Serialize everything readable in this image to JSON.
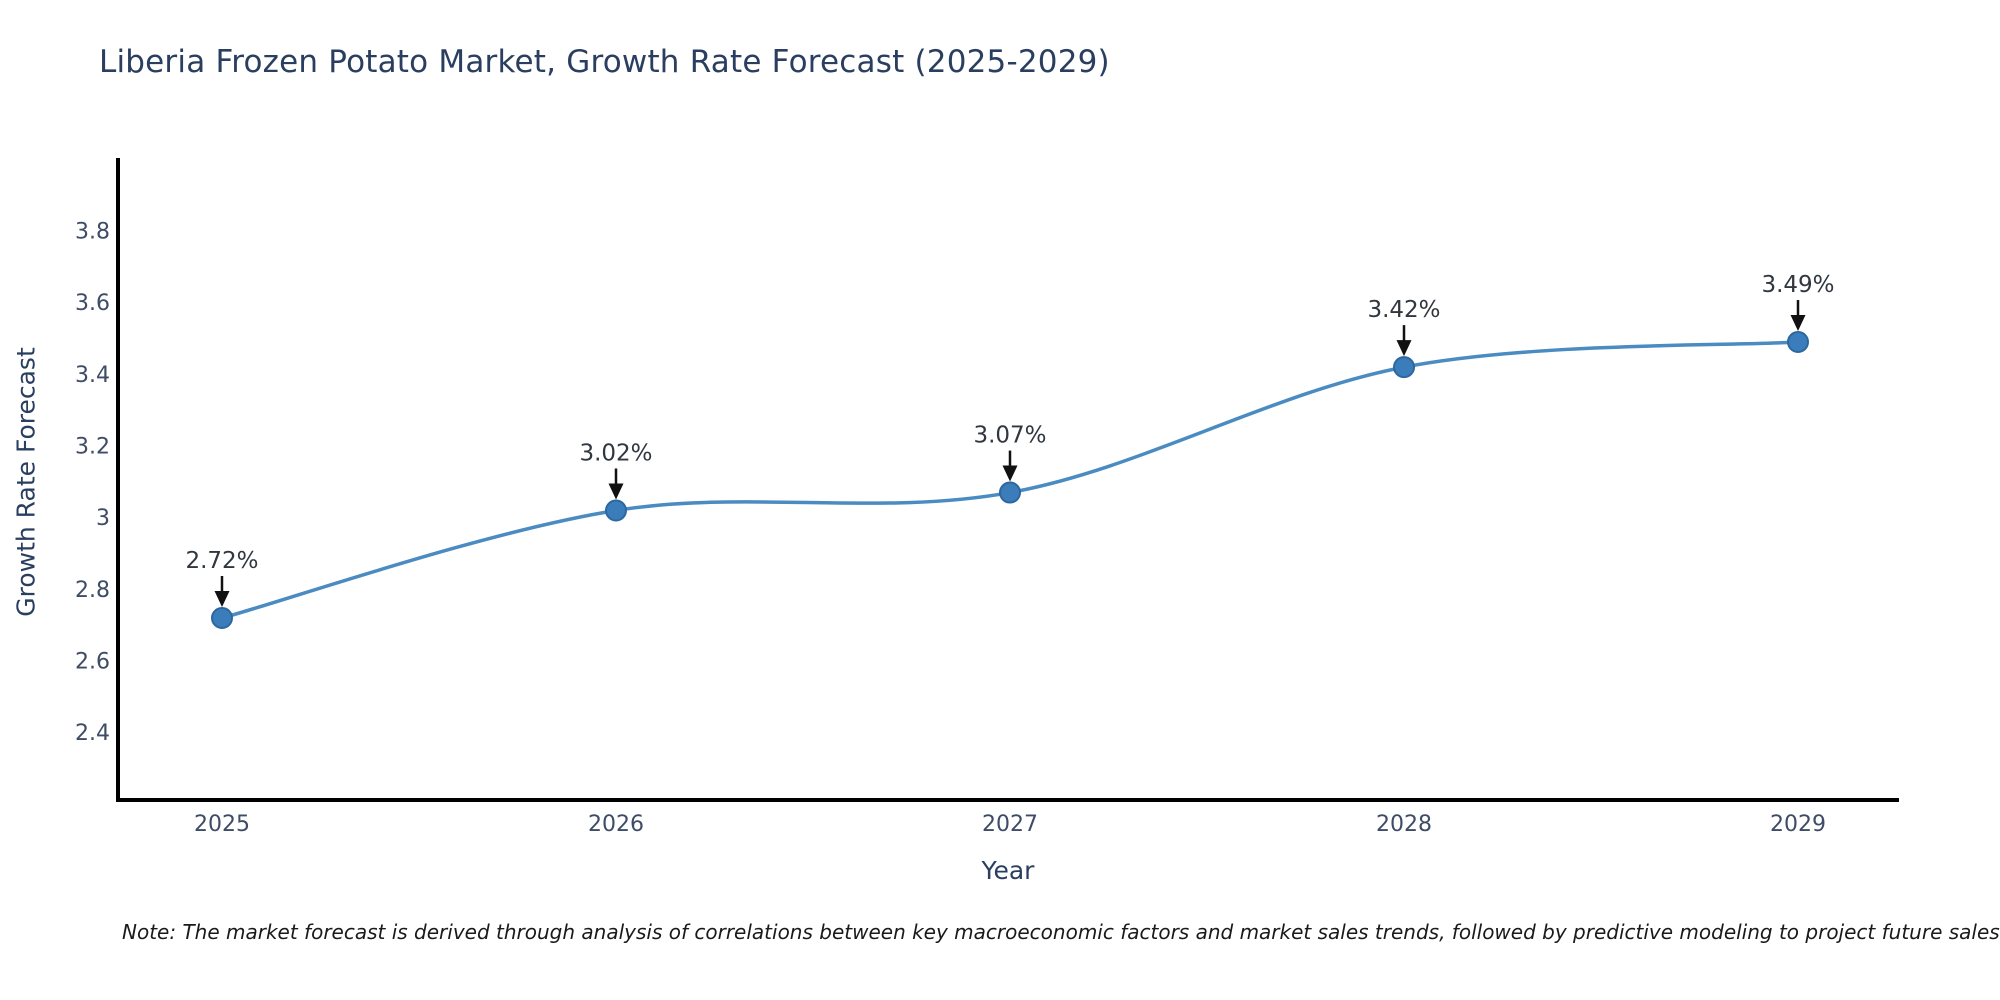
{
  "title": "Liberia Frozen Potato Market, Growth Rate Forecast (2025-2029)",
  "note": "Note: The market forecast is derived through analysis of correlations between key macroeconomic factors and market sales trends, followed by predictive modeling to project future sales",
  "chart_data": {
    "type": "line",
    "title": "Liberia Frozen Potato Market, Growth Rate Forecast (2025-2029)",
    "xlabel": "Year",
    "ylabel": "Growth Rate Forecast",
    "x": [
      2025,
      2026,
      2027,
      2028,
      2029
    ],
    "series": [
      {
        "name": "Growth Rate Forecast",
        "values": [
          2.72,
          3.02,
          3.07,
          3.42,
          3.49
        ]
      }
    ],
    "point_labels": [
      "2.72%",
      "3.02%",
      "3.07%",
      "3.42%",
      "3.49%"
    ],
    "xtick_labels": [
      "2025",
      "2026",
      "2027",
      "2028",
      "2029"
    ],
    "yticks": [
      2.4,
      2.6,
      2.8,
      3,
      3.2,
      3.4,
      3.6,
      3.8
    ],
    "ytick_labels": [
      "2.4",
      "2.6",
      "2.8",
      "3",
      "3.2",
      "3.4",
      "3.6",
      "3.8"
    ],
    "ylim": [
      2.21,
      4.0
    ],
    "grid": false,
    "legend": "none",
    "line_shape": "spline",
    "marker": "circle",
    "annotation_arrows": true,
    "colors": {
      "line": "#4a8bc2",
      "marker": "#3b7cba",
      "marker_border": "#2c689f",
      "axis": "#000000",
      "title_text": "#2a3f5f",
      "axis_title_text": "#2a3f5f",
      "tick_text": "#3e4c66",
      "annotation_text": "#30373f",
      "arrow": "#111111",
      "background": "#ffffff"
    }
  }
}
